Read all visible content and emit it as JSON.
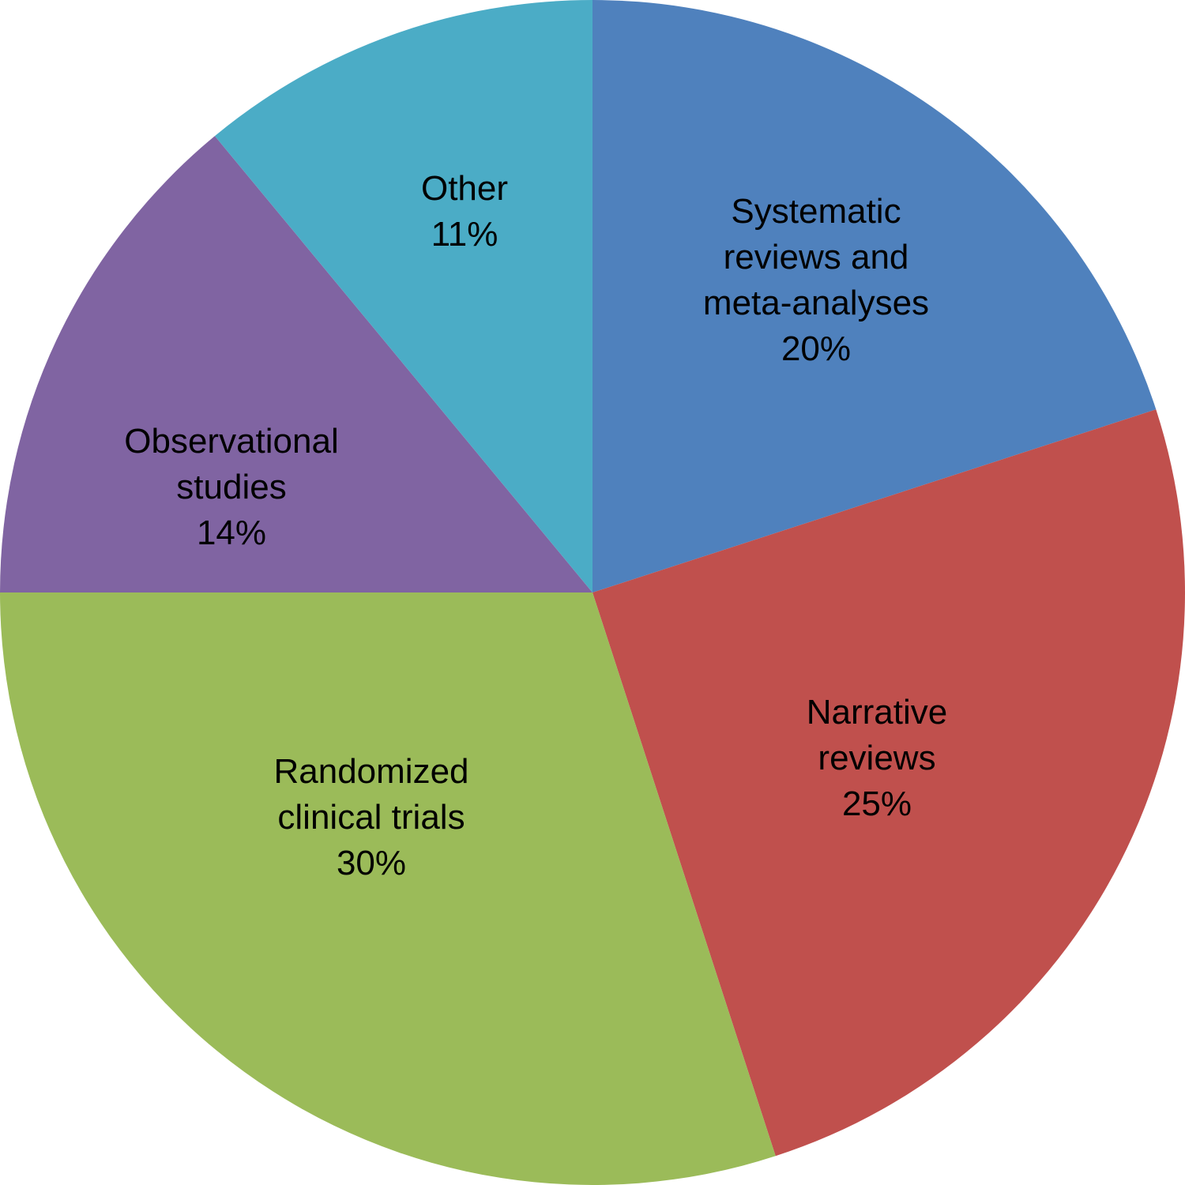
{
  "chart_data": {
    "type": "pie",
    "categories": [
      "Systematic reviews and meta-analyses",
      "Narrative reviews",
      "Randomized clinical trials",
      "Observational studies",
      "Other"
    ],
    "values": [
      20,
      25,
      30,
      14,
      11
    ],
    "value_labels": [
      "20%",
      "25%",
      "30%",
      "14%",
      "11%"
    ],
    "colors": [
      "#4f81bd",
      "#c0504d",
      "#9bbb59",
      "#8064a2",
      "#4bacc6"
    ]
  }
}
